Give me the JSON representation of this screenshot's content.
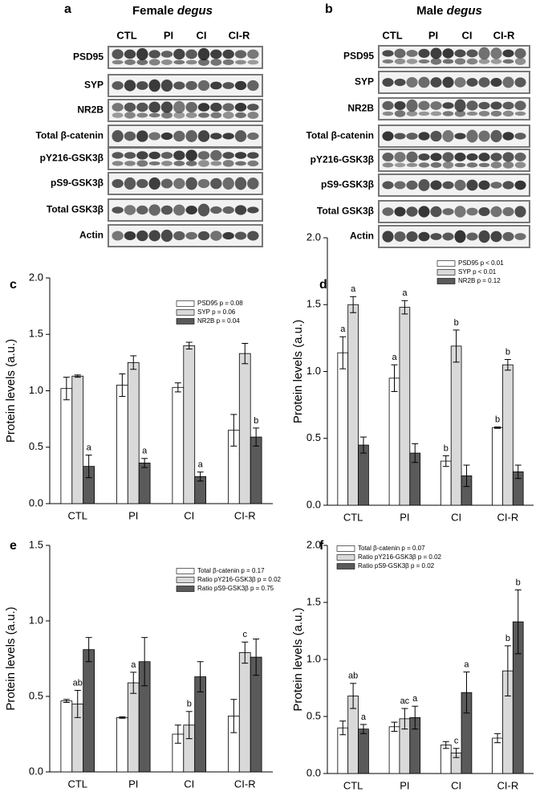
{
  "blots": [
    {
      "panel": "a",
      "title_prefix": "Female",
      "title_italic": "degus",
      "groups": [
        "CTL",
        "PI",
        "CI",
        "CI-R"
      ],
      "rows": [
        "PSD95",
        "SYP",
        "NR2B",
        "Total β-catenin",
        "pY216-GSK3β",
        "pS9-GSK3β",
        "Total GSK3β",
        "Actin"
      ]
    },
    {
      "panel": "b",
      "title_prefix": "Male",
      "title_italic": "degus",
      "groups": [
        "CTL",
        "PI",
        "CI",
        "CI-R"
      ],
      "rows": [
        "PSD95",
        "SYP",
        "NR2B",
        "Total β-catenin",
        "pY216-GSK3β",
        "pS9-GSK3β",
        "Total GSK3β",
        "Actin"
      ]
    }
  ],
  "chart_data": [
    {
      "type": "bar",
      "panel": "c",
      "y_label": "Protein levels (a.u.)",
      "categories": [
        "CTL",
        "PI",
        "CI",
        "CI-R"
      ],
      "ylim": [
        0,
        2
      ],
      "yticks": [
        {
          "value": 0,
          "label": "0.0"
        },
        0.5,
        {
          "value": 1,
          "label": "1.0"
        },
        1.5,
        {
          "value": 2,
          "label": "2.0"
        }
      ],
      "legend": "upper right",
      "series": [
        {
          "name": "PSD95 p = 0.08",
          "color": "#ffffff",
          "values": [
            1.02,
            1.05,
            1.03,
            0.65
          ],
          "errors": [
            0.1,
            0.1,
            0.04,
            0.14
          ],
          "letters": [
            null,
            null,
            null,
            null
          ]
        },
        {
          "name": "SYP p = 0.06",
          "color": "#d9d9d9",
          "values": [
            1.13,
            1.25,
            1.4,
            1.33
          ],
          "errors": [
            0.01,
            0.06,
            0.03,
            0.09
          ],
          "letters": [
            null,
            null,
            null,
            null
          ]
        },
        {
          "name": "NR2B p = 0.04",
          "color": "#5a5a5a",
          "values": [
            0.33,
            0.36,
            0.24,
            0.59
          ],
          "errors": [
            0.1,
            0.04,
            0.04,
            0.08
          ],
          "letters": [
            "a",
            "a",
            "a",
            "b"
          ]
        }
      ]
    },
    {
      "type": "bar",
      "panel": "d",
      "y_label": "Protein levels (a.u.)",
      "categories": [
        "CTL",
        "PI",
        "CI",
        "CI-R"
      ],
      "ylim": [
        0,
        2
      ],
      "yticks": [
        {
          "value": 0,
          "label": "0.0"
        },
        0.5,
        {
          "value": 1,
          "label": "1.0"
        },
        1.5,
        {
          "value": 2,
          "label": "2.0"
        }
      ],
      "legend": "upper right",
      "series": [
        {
          "name": "PSD95 p < 0.01",
          "color": "#ffffff",
          "values": [
            1.14,
            0.95,
            0.33,
            0.58
          ],
          "errors": [
            0.12,
            0.1,
            0.04,
            0.005
          ],
          "letters": [
            "a",
            "a",
            "b",
            "b"
          ]
        },
        {
          "name": "SYP p < 0.01",
          "color": "#d9d9d9",
          "values": [
            1.5,
            1.48,
            1.19,
            1.05
          ],
          "errors": [
            0.06,
            0.05,
            0.12,
            0.04
          ],
          "letters": [
            "a",
            "a",
            "b",
            "b"
          ]
        },
        {
          "name": "NR2B p = 0.12",
          "color": "#5a5a5a",
          "values": [
            0.45,
            0.39,
            0.22,
            0.25
          ],
          "errors": [
            0.06,
            0.07,
            0.08,
            0.05
          ],
          "letters": [
            null,
            null,
            null,
            null
          ]
        }
      ]
    },
    {
      "type": "bar",
      "panel": "e",
      "y_label": "Protein levels (a.u.)",
      "categories": [
        "CTL",
        "PI",
        "CI",
        "CI-R"
      ],
      "ylim": [
        0,
        1.5
      ],
      "yticks": [
        {
          "value": 0,
          "label": "0.0"
        },
        0.5,
        {
          "value": 1,
          "label": "1.0"
        },
        1.5
      ],
      "legend": "upper right",
      "series": [
        {
          "name": "Total β-catenin p = 0.17",
          "color": "#ffffff",
          "values": [
            0.47,
            0.36,
            0.25,
            0.37
          ],
          "errors": [
            0.01,
            0.005,
            0.06,
            0.11
          ],
          "letters": [
            null,
            null,
            null,
            null
          ]
        },
        {
          "name": "Ratio pY216-GSK3β p = 0.02",
          "color": "#d9d9d9",
          "values": [
            0.45,
            0.59,
            0.31,
            0.79
          ],
          "errors": [
            0.09,
            0.07,
            0.09,
            0.07
          ],
          "letters": [
            "ab",
            "a",
            "b",
            "c"
          ]
        },
        {
          "name": "Ratio pS9-GSK3β p = 0.75",
          "color": "#5a5a5a",
          "values": [
            0.81,
            0.73,
            0.63,
            0.76
          ],
          "errors": [
            0.08,
            0.16,
            0.1,
            0.12
          ],
          "letters": [
            null,
            null,
            null,
            null
          ]
        }
      ]
    },
    {
      "type": "bar",
      "panel": "f",
      "y_label": "Protein levels (a.u.)",
      "categories": [
        "CTL",
        "PI",
        "CI",
        "CI-R"
      ],
      "ylim": [
        0,
        2
      ],
      "yticks": [
        {
          "value": 0,
          "label": "0.0"
        },
        0.5,
        {
          "value": 1,
          "label": "1.0"
        },
        1.5,
        {
          "value": 2,
          "label": "2.0"
        }
      ],
      "legend": "upper left",
      "series": [
        {
          "name": "Total β-catenin p = 0.07",
          "color": "#ffffff",
          "values": [
            0.4,
            0.41,
            0.25,
            0.31
          ],
          "errors": [
            0.06,
            0.04,
            0.03,
            0.04
          ],
          "letters": [
            null,
            null,
            null,
            null
          ]
        },
        {
          "name": "Ratio pY216-GSK3β p = 0.02",
          "color": "#d9d9d9",
          "values": [
            0.68,
            0.48,
            0.18,
            0.9
          ],
          "errors": [
            0.11,
            0.09,
            0.04,
            0.22
          ],
          "letters": [
            "ab",
            "ac",
            "c",
            "b"
          ]
        },
        {
          "name": "Ratio pS9-GSK3β p = 0.02",
          "color": "#5a5a5a",
          "values": [
            0.39,
            0.49,
            0.71,
            1.33
          ],
          "errors": [
            0.04,
            0.1,
            0.18,
            0.28
          ],
          "letters": [
            "a",
            "a",
            "a",
            "b"
          ]
        }
      ]
    }
  ]
}
